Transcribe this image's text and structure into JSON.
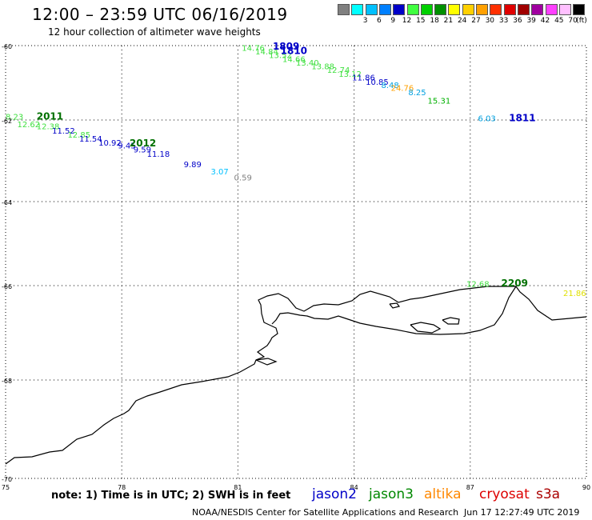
{
  "header": {
    "title": "12:00 – 23:59 UTC 06/16/2019",
    "subtitle": "12 hour collection of altimeter wave heights"
  },
  "legend": {
    "unit": "(ft)",
    "items": [
      {
        "color": "#808080",
        "label": ""
      },
      {
        "color": "#00ffff",
        "label": "3"
      },
      {
        "color": "#00c0ff",
        "label": "6"
      },
      {
        "color": "#0080ff",
        "label": "9"
      },
      {
        "color": "#0000c8",
        "label": "12"
      },
      {
        "color": "#40ff40",
        "label": "15"
      },
      {
        "color": "#00d000",
        "label": "18"
      },
      {
        "color": "#009000",
        "label": "21"
      },
      {
        "color": "#ffff00",
        "label": "24"
      },
      {
        "color": "#ffd000",
        "label": "27"
      },
      {
        "color": "#ffa000",
        "label": "30"
      },
      {
        "color": "#ff3000",
        "label": "33"
      },
      {
        "color": "#e00000",
        "label": "36"
      },
      {
        "color": "#a00000",
        "label": "39"
      },
      {
        "color": "#a000a0",
        "label": "42"
      },
      {
        "color": "#ff40ff",
        "label": "45"
      },
      {
        "color": "#ffc0ff",
        "label": "70"
      },
      {
        "color": "#000000",
        "label": ""
      }
    ]
  },
  "axes": {
    "lat_labels": [
      "-60",
      "-62",
      "-64",
      "-66",
      "-68",
      "-70"
    ],
    "lon_labels": [
      "75",
      "78",
      "81",
      "84",
      "87",
      "90"
    ]
  },
  "observations": [
    {
      "text": "14.76",
      "color": "#40e040",
      "lon": 81.1,
      "lat": -60.05
    },
    {
      "text": "14.84",
      "color": "#40e040",
      "lon": 81.45,
      "lat": -60.15
    },
    {
      "text": "13.52",
      "color": "#40e040",
      "lon": 81.8,
      "lat": -60.25
    },
    {
      "text": "14.66",
      "color": "#40e040",
      "lon": 82.15,
      "lat": -60.35
    },
    {
      "text": "13.40",
      "color": "#40e040",
      "lon": 82.5,
      "lat": -60.45
    },
    {
      "text": "13.88",
      "color": "#40e040",
      "lon": 82.9,
      "lat": -60.55
    },
    {
      "text": "12.74",
      "color": "#40e040",
      "lon": 83.3,
      "lat": -60.65
    },
    {
      "text": "13.12",
      "color": "#40e040",
      "lon": 83.6,
      "lat": -60.75
    },
    {
      "text": "11.86",
      "color": "#0000c8",
      "lon": 83.95,
      "lat": -60.85
    },
    {
      "text": "10.85",
      "color": "#0000c8",
      "lon": 84.3,
      "lat": -60.97
    },
    {
      "text": "8.48",
      "color": "#00a0e0",
      "lon": 84.7,
      "lat": -61.05
    },
    {
      "text": "24.76",
      "color": "#ffa000",
      "lon": 84.95,
      "lat": -61.13
    },
    {
      "text": "8.25",
      "color": "#00a0e0",
      "lon": 85.4,
      "lat": -61.25
    },
    {
      "text": "15.31",
      "color": "#00b000",
      "lon": 85.9,
      "lat": -61.47
    },
    {
      "text": "6.03",
      "color": "#00a0e0",
      "lon": 87.2,
      "lat": -61.95
    },
    {
      "text": "8.23",
      "color": "#40e040",
      "lon": 75.0,
      "lat": -61.9
    },
    {
      "text": "12.62",
      "color": "#40e040",
      "lon": 75.3,
      "lat": -62.1
    },
    {
      "text": "12.38",
      "color": "#40e040",
      "lon": 75.8,
      "lat": -62.15
    },
    {
      "text": "11.52",
      "color": "#0000c8",
      "lon": 76.2,
      "lat": -62.25
    },
    {
      "text": "12.85",
      "color": "#40e040",
      "lon": 76.6,
      "lat": -62.35
    },
    {
      "text": "11.54",
      "color": "#0000c8",
      "lon": 76.9,
      "lat": -62.45
    },
    {
      "text": "10.92",
      "color": "#0000c8",
      "lon": 77.4,
      "lat": -62.55
    },
    {
      "text": "9.45",
      "color": "#0000c8",
      "lon": 77.9,
      "lat": -62.62
    },
    {
      "text": "9.59",
      "color": "#0000c8",
      "lon": 78.3,
      "lat": -62.72
    },
    {
      "text": "11.18",
      "color": "#0000c8",
      "lon": 78.65,
      "lat": -62.82
    },
    {
      "text": "9.89",
      "color": "#0000c8",
      "lon": 79.6,
      "lat": -63.08
    },
    {
      "text": "3.07",
      "color": "#00c0ff",
      "lon": 80.3,
      "lat": -63.25
    },
    {
      "text": "0.59",
      "color": "#808080",
      "lon": 80.9,
      "lat": -63.4
    },
    {
      "text": "12.68",
      "color": "#40e040",
      "lon": 86.9,
      "lat": -65.95
    },
    {
      "text": "21.86",
      "color": "#e0e000",
      "lon": 89.4,
      "lat": -66.15
    }
  ],
  "pass_labels": [
    {
      "text": "1809",
      "color": "#0000c8",
      "lon": 81.9,
      "lat": -60.0
    },
    {
      "text": "1810",
      "color": "#0000c8",
      "lon": 82.1,
      "lat": -60.12
    },
    {
      "text": "1811",
      "color": "#0000c8",
      "lon": 88.0,
      "lat": -61.92
    },
    {
      "text": "2011",
      "color": "#007000",
      "lon": 75.8,
      "lat": -61.88
    },
    {
      "text": "2012",
      "color": "#007000",
      "lon": 78.2,
      "lat": -62.55
    },
    {
      "text": "2209",
      "color": "#007000",
      "lon": 87.8,
      "lat": -65.92
    }
  ],
  "footer": {
    "note": "note: 1) Time is in UTC; 2) SWH is in feet",
    "satellites": [
      {
        "name": "jason2",
        "color": "#0000c8"
      },
      {
        "name": "jason3",
        "color": "#008800"
      },
      {
        "name": "altika",
        "color": "#ff8800"
      },
      {
        "name": "cryosat",
        "color": "#dd0000"
      },
      {
        "name": "s3a",
        "color": "#aa0000"
      }
    ],
    "credit": "NOAA/NESDIS Center for Satellite Applications and Research",
    "timestamp": "Jun 17 12:27:49 UTC 2019"
  }
}
